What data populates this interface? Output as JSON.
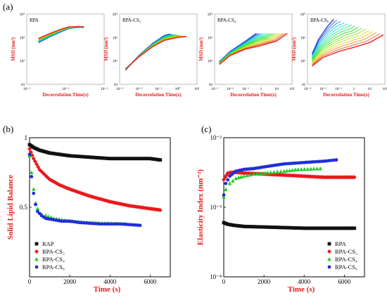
{
  "labels": {
    "a": "(a)",
    "b": "(b)",
    "c": "(c)"
  },
  "colors": {
    "red": "#e8191a",
    "blue": "#1f2fd8",
    "green": "#22cc22",
    "black": "#111111"
  },
  "chart_data": [
    {
      "type": "line",
      "panel": "(a)",
      "title": "RPA",
      "xlabel": "Decorrelation Time(s)",
      "ylabel": "MSD (nm²)",
      "xscale": "log",
      "yscale": "log",
      "xlim": [
        0.001,
        0.1
      ],
      "ylim": [
        10,
        10000
      ],
      "xticks": [
        "10⁻³",
        "10⁻²",
        "10⁻¹"
      ],
      "yticks": [
        "10",
        "10²",
        "10³",
        "10⁴"
      ],
      "series": [
        {
          "color": "#e8191a",
          "x": [
            0.002,
            0.004,
            0.008,
            0.012,
            0.02,
            0.03
          ],
          "y": [
            900,
            1500,
            2300,
            2800,
            2900,
            2900
          ]
        },
        {
          "color": "#1f2fd8",
          "x": [
            0.002,
            0.004,
            0.008,
            0.012,
            0.02,
            0.03
          ],
          "y": [
            600,
            1100,
            1800,
            2400,
            2700,
            2700
          ]
        }
      ]
    },
    {
      "type": "line",
      "panel": "(a)",
      "title": "RPA-CS₂",
      "xlabel": "Decorrelation Time(s)",
      "ylabel": "MSD (nm²)",
      "xscale": "log",
      "yscale": "log",
      "xlim": [
        0.001,
        10
      ],
      "ylim": [
        10,
        10000
      ],
      "xticks": [
        "10⁻³",
        "10⁻²",
        "10⁻¹",
        "10⁰",
        "10¹"
      ],
      "yticks": [
        "10",
        "10²",
        "10³",
        "10⁴"
      ],
      "series": [
        {
          "color": "#e8191a",
          "x": [
            0.002,
            0.01,
            0.05,
            0.2,
            1,
            3
          ],
          "y": [
            45,
            150,
            400,
            750,
            1000,
            1100
          ]
        },
        {
          "color": "#1f2fd8",
          "x": [
            0.002,
            0.01,
            0.05,
            0.2,
            0.4
          ],
          "y": [
            40,
            170,
            550,
            1200,
            1400
          ]
        }
      ]
    },
    {
      "type": "line",
      "panel": "(a)",
      "title": "RPA-CS₄",
      "xlabel": "Decorrelation Time(s)",
      "ylabel": "MSD (nm²)",
      "xscale": "log",
      "yscale": "log",
      "xlim": [
        0.001,
        100
      ],
      "ylim": [
        10,
        10000
      ],
      "xticks": [
        "10⁻³",
        "10⁻²",
        "10⁻¹",
        "1",
        "10",
        "10²"
      ],
      "yticks": [
        "10",
        "10²",
        "10³",
        "10⁴"
      ],
      "series": [
        {
          "color": "#e8191a",
          "x": [
            0.002,
            0.01,
            0.1,
            1,
            10,
            50
          ],
          "y": [
            70,
            170,
            320,
            450,
            700,
            1500
          ]
        },
        {
          "color": "#1f2fd8",
          "x": [
            0.002,
            0.01,
            0.1,
            0.5
          ],
          "y": [
            90,
            250,
            700,
            1500
          ]
        }
      ]
    },
    {
      "type": "line",
      "panel": "(a)",
      "title": "RPA-CS₆",
      "xlabel": "Decorrelation Time(s)",
      "ylabel": "MSD (nm²)",
      "xscale": "log",
      "yscale": "log",
      "xlim": [
        0.001,
        100
      ],
      "ylim": [
        10,
        10000
      ],
      "xticks": [
        "10⁻³",
        "10⁻²",
        "10⁻¹",
        "1",
        "10",
        "10²"
      ],
      "yticks": [
        "10",
        "10²",
        "10³",
        "10⁴"
      ],
      "series": [
        {
          "color": "#e8191a",
          "x": [
            0.002,
            0.01,
            0.1,
            1,
            10,
            80
          ],
          "y": [
            60,
            140,
            250,
            380,
            600,
            1300
          ]
        },
        {
          "color": "#1f2fd8",
          "x": [
            0.002,
            0.005,
            0.02,
            0.05
          ],
          "y": [
            200,
            800,
            3000,
            6000
          ]
        }
      ]
    },
    {
      "type": "scatter",
      "panel": "(b)",
      "xlabel": "Time (s)",
      "ylabel": "Solid Lipid Balance",
      "xlim": [
        0,
        7000
      ],
      "ylim": [
        0,
        1
      ],
      "xticks": [
        0,
        2000,
        4000,
        6000
      ],
      "yticks": [
        0.5,
        1
      ],
      "legend": {
        "position": "bottom-left",
        "entries": [
          "RAP",
          "RPA-CS₂",
          "RPA-CS₄",
          "RPA-CS₆"
        ]
      },
      "series": [
        {
          "name": "RAP",
          "marker": "square",
          "color": "#111111",
          "x": [
            0,
            200,
            500,
            1000,
            1500,
            2000,
            3000,
            4000,
            5000,
            6000,
            6500
          ],
          "y": [
            0.95,
            0.93,
            0.91,
            0.89,
            0.88,
            0.87,
            0.86,
            0.85,
            0.85,
            0.85,
            0.84
          ]
        },
        {
          "name": "RPA-CS₂",
          "marker": "diamond",
          "color": "#e8191a",
          "x": [
            0,
            200,
            500,
            1000,
            1500,
            2000,
            3000,
            4000,
            5000,
            6000,
            6500
          ],
          "y": [
            0.92,
            0.85,
            0.77,
            0.7,
            0.66,
            0.63,
            0.58,
            0.54,
            0.51,
            0.49,
            0.48
          ]
        },
        {
          "name": "RPA-CS₄",
          "marker": "triangle",
          "color": "#22cc22",
          "x": [
            0,
            100,
            200,
            300,
            400,
            600,
            800,
            1200,
            1600,
            2000,
            3000,
            4800
          ],
          "y": [
            0.87,
            0.75,
            0.63,
            0.53,
            0.49,
            0.45,
            0.44,
            0.42,
            0.41,
            0.4,
            0.39,
            0.38
          ]
        },
        {
          "name": "RPA-CS₆",
          "marker": "circle",
          "color": "#1f2fd8",
          "x": [
            0,
            100,
            200,
            300,
            400,
            600,
            800,
            1200,
            1600,
            2000,
            2500,
            3500,
            4500,
            5500
          ],
          "y": [
            0.88,
            0.72,
            0.6,
            0.52,
            0.47,
            0.44,
            0.42,
            0.41,
            0.4,
            0.4,
            0.39,
            0.38,
            0.38,
            0.37
          ]
        }
      ]
    },
    {
      "type": "scatter",
      "panel": "(c)",
      "xlabel": "Time (s)",
      "ylabel": "Elasticity Index  (nm⁻²)",
      "yscale": "log",
      "xlim": [
        0,
        7000
      ],
      "ylim": [
        0.0001,
        0.01
      ],
      "xticks": [
        0,
        2000,
        4000,
        6000
      ],
      "yticks": [
        "10⁻⁴",
        "10⁻³",
        "10⁻²"
      ],
      "legend": {
        "position": "bottom-right",
        "entries": [
          "RPA",
          "RPA-CS₂",
          "RPA-CS₄",
          "RPA-CS₆"
        ]
      },
      "series": [
        {
          "name": "RPA",
          "marker": "square",
          "color": "#111111",
          "x": [
            0,
            200,
            500,
            1000,
            2000,
            3000,
            4000,
            5000,
            6000,
            6500
          ],
          "y": [
            0.0006,
            0.00057,
            0.00055,
            0.00053,
            0.00052,
            0.00051,
            0.0005,
            0.0005,
            0.0005,
            0.0005
          ]
        },
        {
          "name": "RPA-CS₂",
          "marker": "diamond",
          "color": "#e8191a",
          "x": [
            0,
            200,
            500,
            1000,
            2000,
            3000,
            4000,
            5000,
            6000,
            6500
          ],
          "y": [
            0.0025,
            0.0031,
            0.0032,
            0.0031,
            0.003,
            0.0029,
            0.0028,
            0.0027,
            0.0027,
            0.0027
          ]
        },
        {
          "name": "RPA-CS₄",
          "marker": "triangle",
          "color": "#22cc22",
          "x": [
            0,
            100,
            300,
            600,
            1000,
            1500,
            2000,
            2500,
            3000,
            3700,
            4800
          ],
          "y": [
            0.0014,
            0.0018,
            0.0022,
            0.0026,
            0.0028,
            0.003,
            0.0031,
            0.0032,
            0.0033,
            0.0035,
            0.0036
          ]
        },
        {
          "name": "RPA-CS₆",
          "marker": "circle",
          "color": "#1f2fd8",
          "x": [
            0,
            100,
            300,
            600,
            1000,
            1500,
            2000,
            2500,
            3000,
            4000,
            5000,
            5600
          ],
          "y": [
            0.0015,
            0.0022,
            0.0028,
            0.0033,
            0.0035,
            0.0036,
            0.0038,
            0.004,
            0.0042,
            0.0044,
            0.0046,
            0.0048
          ]
        }
      ]
    }
  ]
}
